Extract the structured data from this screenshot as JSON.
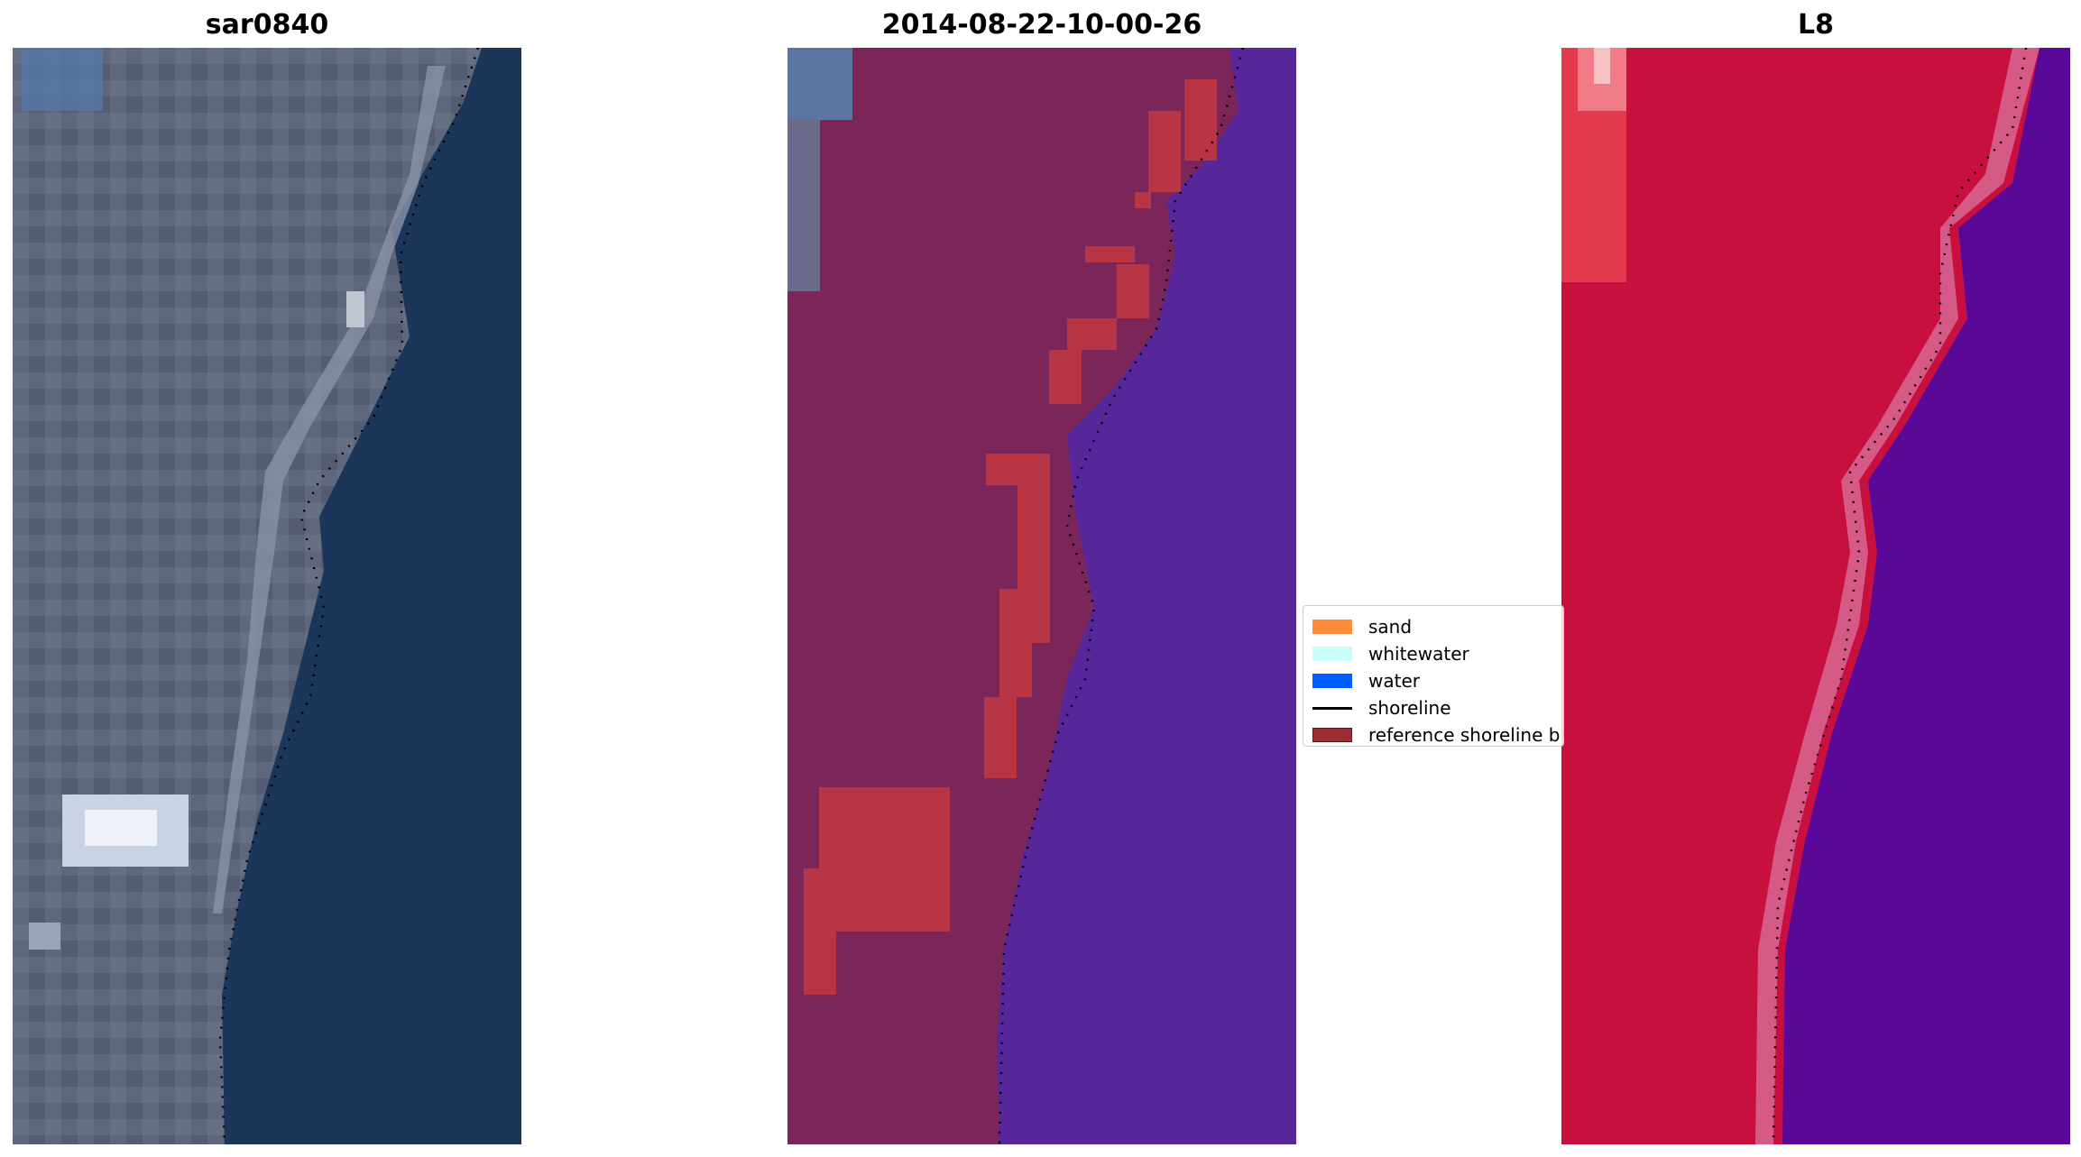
{
  "panels": [
    {
      "title": "sar0840"
    },
    {
      "title": "2014-08-22-10-00-26"
    },
    {
      "title": "L8"
    }
  ],
  "legend": {
    "items": [
      {
        "label": "sand",
        "color": "#ff8c3a"
      },
      {
        "label": "whitewater",
        "color": "#c8fffb"
      },
      {
        "label": "water",
        "color": "#005cff"
      },
      {
        "label": "shoreline",
        "color": "#000000"
      },
      {
        "label": "reference shoreline b",
        "color": "#9c2e33"
      }
    ]
  },
  "colors": {
    "rgb_land": "#5b6478",
    "rgb_water": "#1b3658",
    "classified_land": "#7b2559",
    "classified_water": "#56269a",
    "classified_buffer": "#b83545",
    "false_color_land": "#c8103f",
    "false_color_water": "#5a0898"
  }
}
